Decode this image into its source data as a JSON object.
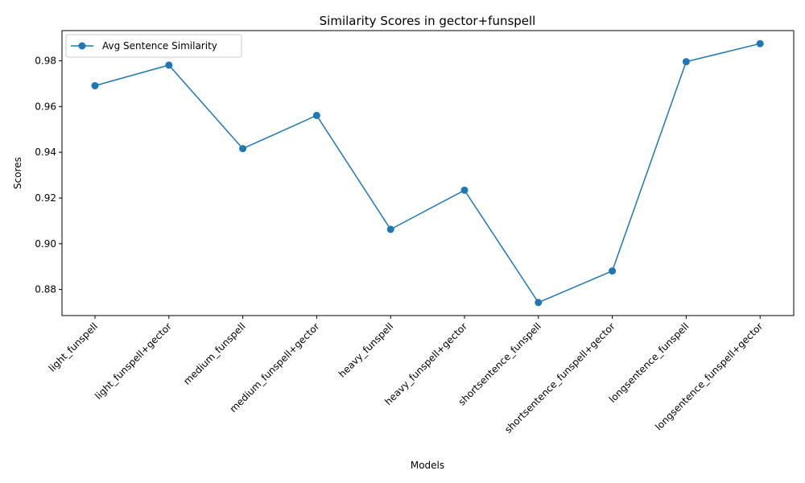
{
  "chart_data": {
    "type": "line",
    "title": "Similarity Scores in gector+funspell",
    "xlabel": "Models",
    "ylabel": "Scores",
    "categories": [
      "light_funspell",
      "light_funspell+gector",
      "medium_funspell",
      "medium_funspell+gector",
      "heavy_funspell",
      "heavy_funspell+gector",
      "shortsentence_funspell",
      "shortsentence_funspell+gector",
      "longsentence_funspell",
      "longsentence_funspell+gector"
    ],
    "series": [
      {
        "name": "Avg Sentence Similarity",
        "color": "#1f77b4",
        "marker": "circle",
        "values": [
          0.9691,
          0.9781,
          0.9416,
          0.9561,
          0.9063,
          0.9234,
          0.8743,
          0.8881,
          0.9796,
          0.9875
        ]
      }
    ],
    "ylim": [
      0.8686,
      0.9932
    ],
    "yticks": [
      0.88,
      0.9,
      0.92,
      0.94,
      0.96,
      0.98
    ],
    "ytick_labels": [
      "0.88",
      "0.90",
      "0.92",
      "0.94",
      "0.96",
      "0.98"
    ],
    "grid": false,
    "legend_position": "top-left"
  }
}
